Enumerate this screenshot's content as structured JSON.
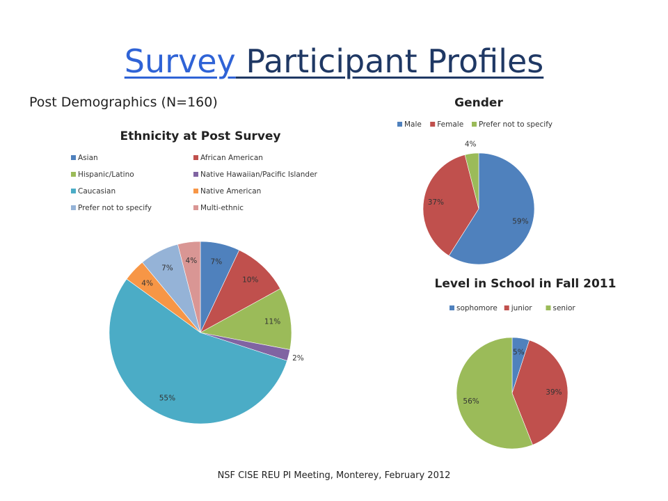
{
  "slide": {
    "title_link": "Survey",
    "title_rest": " Participant Profiles",
    "subtitle": "Post Demographics (N=160)",
    "footer": "NSF CISE REU PI Meeting, Monterey, February 2012"
  },
  "chart_data": [
    {
      "type": "pie",
      "title": "Ethnicity at Post Survey",
      "legend_position": "top",
      "categories": [
        "Asian",
        "African American",
        "Hispanic/Latino",
        "Native Hawaiian/Pacific Islander",
        "Caucasian",
        "Native American",
        "Prefer not to specify",
        "Multi-ethnic"
      ],
      "values": [
        7,
        10,
        11,
        2,
        55,
        4,
        7,
        4
      ],
      "labels": [
        "7%",
        "10%",
        "11%",
        "2%",
        "55%",
        "4%",
        "7%",
        "4%"
      ],
      "colors": [
        "#4f81bd",
        "#c0504d",
        "#9bbb59",
        "#8064a2",
        "#4bacc6",
        "#f79646",
        "#95b3d7",
        "#d99694"
      ]
    },
    {
      "type": "pie",
      "title": "Gender",
      "legend_position": "top",
      "categories": [
        "Male",
        "Female",
        "Prefer not to specify"
      ],
      "values": [
        59,
        37,
        4
      ],
      "labels": [
        "59%",
        "37%",
        "4%"
      ],
      "colors": [
        "#4f81bd",
        "#c0504d",
        "#9bbb59"
      ]
    },
    {
      "type": "pie",
      "title": "Level in School in Fall 2011",
      "legend_position": "top",
      "categories": [
        "sophomore",
        "junior",
        "senior"
      ],
      "values": [
        5,
        39,
        56
      ],
      "labels": [
        "5%",
        "39%",
        "56%"
      ],
      "colors": [
        "#4f81bd",
        "#c0504d",
        "#9bbb59"
      ]
    }
  ]
}
